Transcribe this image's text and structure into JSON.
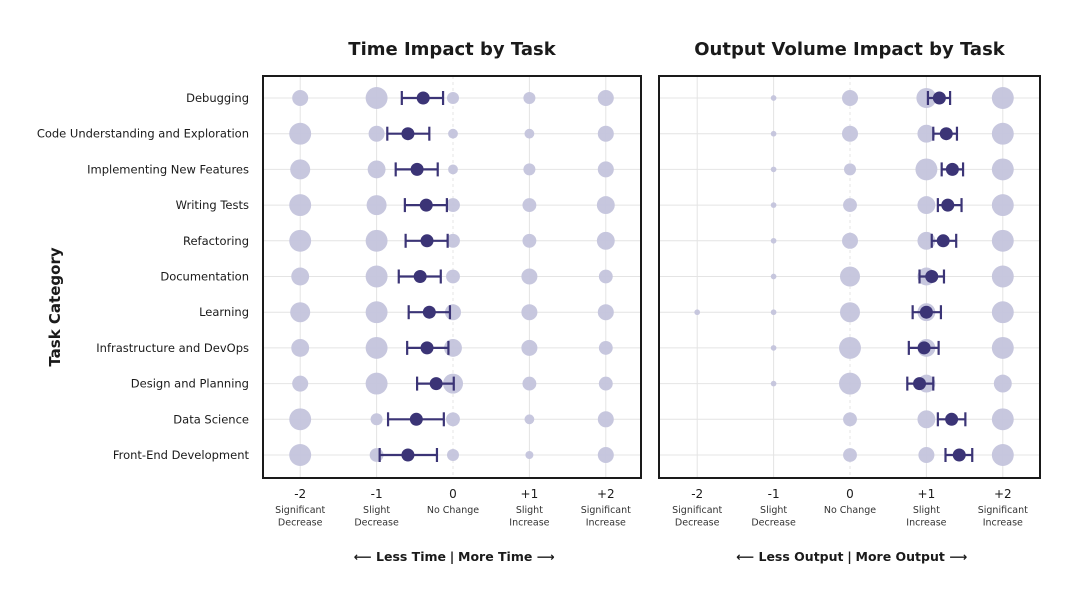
{
  "colors": {
    "mean": "#3b3476",
    "bubble": "#c4c4dc",
    "grid": "#e4e4e4",
    "frame": "#1a1a1a"
  },
  "chart_data": {
    "ylabel": "Task Category",
    "categories": [
      "Debugging",
      "Code Understanding and Exploration",
      "Implementing New Features",
      "Writing Tests",
      "Refactoring",
      "Documentation",
      "Learning",
      "Infrastructure and DevOps",
      "Design and Planning",
      "Data Science",
      "Front-End Development"
    ],
    "x_ticks": [
      {
        "value": -2,
        "label": "-2",
        "desc": [
          "Significant",
          "Decrease"
        ]
      },
      {
        "value": -1,
        "label": "-1",
        "desc": [
          "Slight",
          "Decrease"
        ]
      },
      {
        "value": 0,
        "label": "0",
        "desc": [
          "No Change"
        ]
      },
      {
        "value": 1,
        "label": "+1",
        "desc": [
          "Slight",
          "Increase"
        ]
      },
      {
        "value": 2,
        "label": "+2",
        "desc": [
          "Significant",
          "Increase"
        ]
      }
    ],
    "xlim": [
      -2.5,
      2.5
    ],
    "grid": true,
    "panels": [
      {
        "type": "scatter",
        "title": "Time Impact by Task",
        "arrow_left": "Less Time",
        "arrow_right": "More Time",
        "means": [
          -0.39,
          -0.59,
          -0.47,
          -0.35,
          -0.34,
          -0.43,
          -0.31,
          -0.34,
          -0.22,
          -0.48,
          -0.59
        ],
        "ci_low": [
          -0.67,
          -0.86,
          -0.75,
          -0.63,
          -0.62,
          -0.71,
          -0.58,
          -0.6,
          -0.47,
          -0.85,
          -0.96
        ],
        "ci_high": [
          -0.13,
          -0.31,
          -0.2,
          -0.08,
          -0.07,
          -0.16,
          -0.04,
          -0.06,
          0.01,
          -0.12,
          -0.21
        ],
        "response_share_pct": [
          [
            16,
            30,
            9,
            9,
            16
          ],
          [
            30,
            16,
            6,
            6,
            16
          ],
          [
            25,
            20,
            6,
            9,
            16
          ],
          [
            30,
            25,
            12,
            12,
            20
          ],
          [
            30,
            30,
            12,
            12,
            20
          ],
          [
            20,
            30,
            12,
            16,
            12
          ],
          [
            25,
            30,
            16,
            16,
            16
          ],
          [
            20,
            30,
            20,
            16,
            12
          ],
          [
            16,
            30,
            25,
            12,
            12
          ],
          [
            30,
            9,
            12,
            6,
            16
          ],
          [
            30,
            12,
            9,
            4,
            16
          ]
        ]
      },
      {
        "type": "scatter",
        "title": "Output Volume Impact by Task",
        "arrow_left": "Less Output",
        "arrow_right": "More Output",
        "means": [
          1.17,
          1.26,
          1.34,
          1.28,
          1.22,
          1.07,
          1.0,
          0.97,
          0.91,
          1.33,
          1.43
        ],
        "ci_low": [
          1.02,
          1.09,
          1.2,
          1.15,
          1.07,
          0.91,
          0.82,
          0.77,
          0.75,
          1.15,
          1.25
        ],
        "ci_high": [
          1.31,
          1.4,
          1.48,
          1.46,
          1.39,
          1.23,
          1.19,
          1.16,
          1.09,
          1.51,
          1.6
        ],
        "response_share_pct": [
          [
            0,
            2,
            16,
            25,
            30
          ],
          [
            0,
            2,
            16,
            20,
            30
          ],
          [
            0,
            2,
            9,
            30,
            30
          ],
          [
            0,
            2,
            12,
            20,
            30
          ],
          [
            0,
            2,
            16,
            20,
            30
          ],
          [
            0,
            2,
            25,
            20,
            30
          ],
          [
            2,
            2,
            25,
            20,
            30
          ],
          [
            0,
            2,
            30,
            20,
            30
          ],
          [
            0,
            2,
            30,
            20,
            20
          ],
          [
            0,
            0,
            12,
            20,
            30
          ],
          [
            0,
            0,
            12,
            16,
            30
          ]
        ]
      }
    ]
  }
}
